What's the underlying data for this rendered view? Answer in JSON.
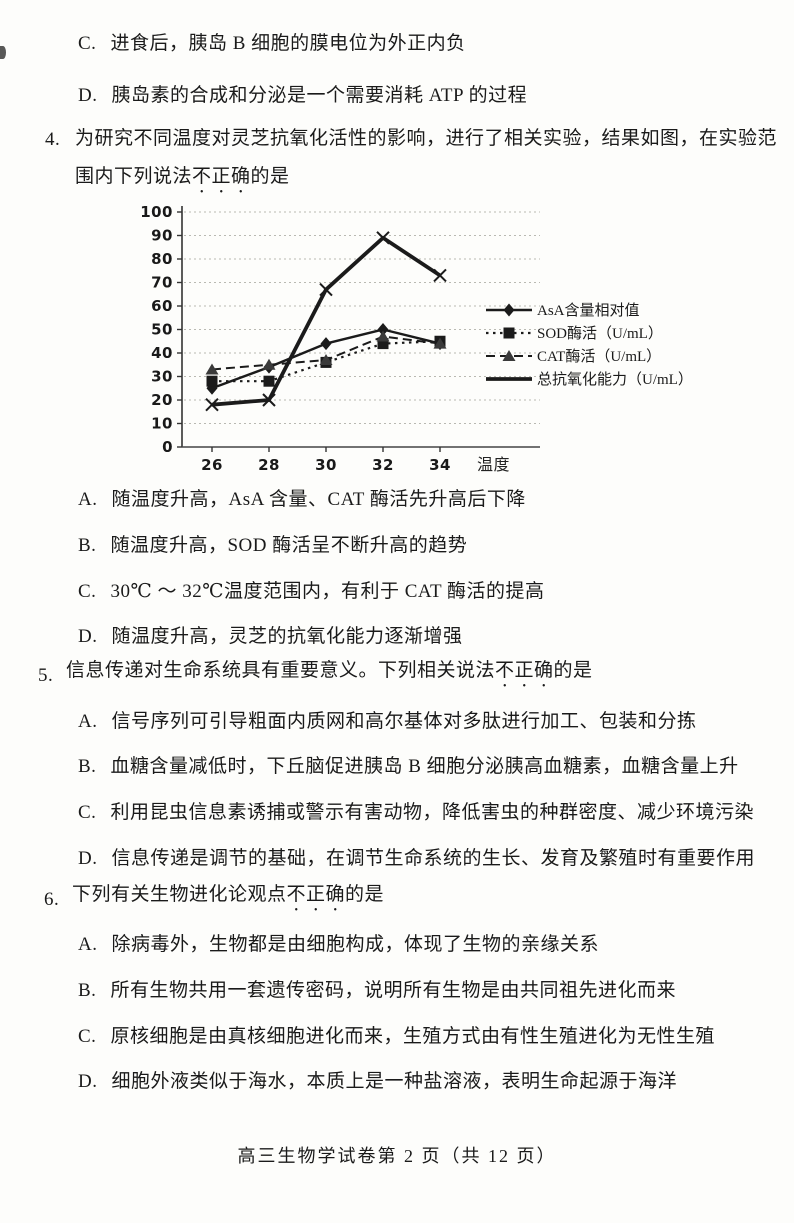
{
  "q3_partial": {
    "options": [
      {
        "letter": "C.",
        "text": "进食后，胰岛 B 细胞的膜电位为外正内负"
      },
      {
        "letter": "D.",
        "text": "胰岛素的合成和分泌是一个需要消耗 ATP 的过程"
      }
    ]
  },
  "questions": [
    {
      "number": "4.",
      "stem_pre": "为研究不同温度对灵芝抗氧化活性的影响，进行了相关实验，结果如图，在实验范围内下列说法",
      "stem_emph": "不正确",
      "stem_post": "的是",
      "options": [
        {
          "letter": "A.",
          "text": "随温度升高，AsA 含量、CAT 酶活先升高后下降"
        },
        {
          "letter": "B.",
          "text": "随温度升高，SOD 酶活呈不断升高的趋势"
        },
        {
          "letter": "C.",
          "text": "30℃ ～ 32℃温度范围内，有利于 CAT 酶活的提高"
        },
        {
          "letter": "D.",
          "text": "随温度升高，灵芝的抗氧化能力逐渐增强"
        }
      ]
    },
    {
      "number": "5.",
      "stem_pre": "信息传递对生命系统具有重要意义。下列相关说法",
      "stem_emph": "不正确",
      "stem_post": "的是",
      "options": [
        {
          "letter": "A.",
          "text": "信号序列可引导粗面内质网和高尔基体对多肽进行加工、包装和分拣"
        },
        {
          "letter": "B.",
          "text": "血糖含量减低时，下丘脑促进胰岛 B 细胞分泌胰高血糖素，血糖含量上升"
        },
        {
          "letter": "C.",
          "text": "利用昆虫信息素诱捕或警示有害动物，降低害虫的种群密度、减少环境污染"
        },
        {
          "letter": "D.",
          "text": "信息传递是调节的基础，在调节生命系统的生长、发育及繁殖时有重要作用"
        }
      ]
    },
    {
      "number": "6.",
      "stem_pre": "下列有关生物进化论观点",
      "stem_emph": "不正确",
      "stem_post": "的是",
      "options": [
        {
          "letter": "A.",
          "text": "除病毒外，生物都是由细胞构成，体现了生物的亲缘关系"
        },
        {
          "letter": "B.",
          "text": "所有生物共用一套遗传密码，说明所有生物是由共同祖先进化而来"
        },
        {
          "letter": "C.",
          "text": "原核细胞是由真核细胞进化而来，生殖方式由有性生殖进化为无性生殖"
        },
        {
          "letter": "D.",
          "text": "细胞外液类似于海水，本质上是一种盐溶液，表明生命起源于海洋"
        }
      ]
    }
  ],
  "chart_data": {
    "type": "line",
    "x": [
      26,
      28,
      30,
      32,
      34
    ],
    "xlabel": "温度",
    "ylim": [
      0,
      100
    ],
    "ytick_step": 10,
    "grid": true,
    "legend_position": "right",
    "line_color": "#1b1b1b",
    "series": [
      {
        "key": "asa",
        "name": "AsA含量相对值",
        "values": [
          25,
          34,
          44,
          50,
          44
        ],
        "style": "solid",
        "marker": "diamond"
      },
      {
        "key": "sod",
        "name": "SOD酶活（U/mL）",
        "values": [
          28,
          28,
          36,
          44,
          45
        ],
        "style": "dotted",
        "marker": "square"
      },
      {
        "key": "cat",
        "name": "CAT酶活（U/mL）",
        "values": [
          33,
          35,
          37,
          47,
          44
        ],
        "style": "dashed",
        "marker": "triangle"
      },
      {
        "key": "total",
        "name": "总抗氧化能力（U/mL）",
        "values": [
          18,
          20,
          67,
          89,
          73
        ],
        "style": "solid-thick",
        "marker": "x"
      }
    ]
  },
  "footer": "高三生物学试卷第 2 页（共 12 页）"
}
